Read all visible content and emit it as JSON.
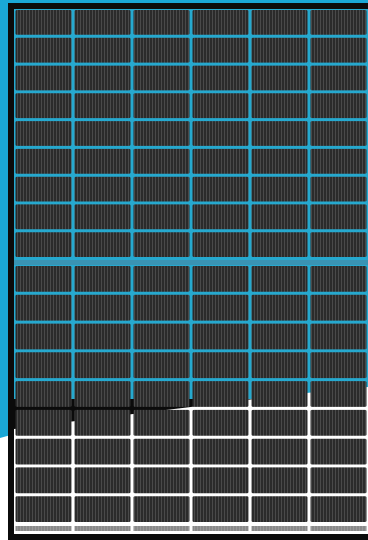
{
  "image": {
    "subject": "solar-panel",
    "colors": {
      "background_blue": "#1aa7d6",
      "background_white": "#ffffff",
      "frame": "#0b0b0b",
      "cell": "#2e2e2e",
      "cell_stripe": "#4a4a4a",
      "cell_gap_top": "#26a9cf",
      "cell_gap_bottom": "#ffffff",
      "busbar": "#3a93b3"
    },
    "grid": {
      "columns": 6,
      "rows": 18,
      "bottom_white_rows": 5
    }
  }
}
